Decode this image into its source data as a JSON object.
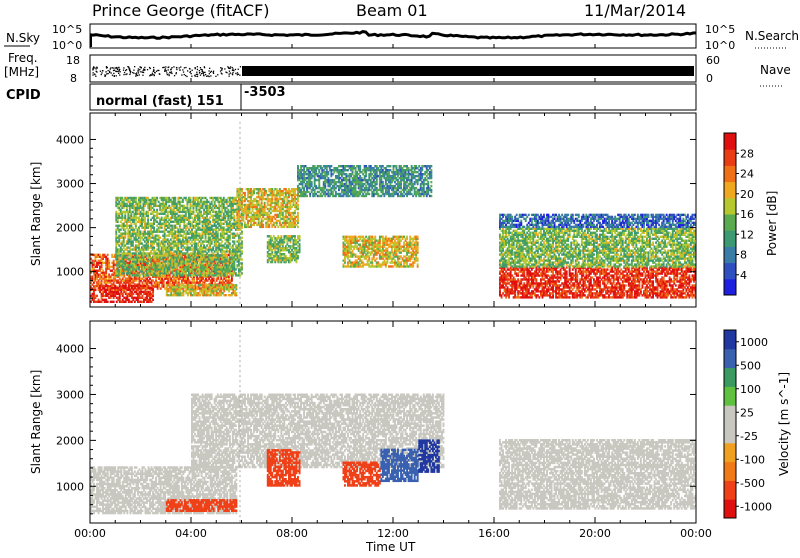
{
  "title": {
    "station": "Prince George (fitACF)",
    "beam": "Beam 01",
    "date": "11/Mar/2014"
  },
  "noise_panel": {
    "left_label": "N.Sky",
    "right_label": "N.Search",
    "left_ticks": [
      "10^5",
      "10^0"
    ],
    "right_ticks": [
      "10^5",
      "10^0"
    ]
  },
  "freq_panel": {
    "left_label_line1": "Freq.",
    "left_label_line2": "[MHz]",
    "right_label": "Nave",
    "left_ticks": [
      "18",
      "8"
    ],
    "right_ticks": [
      "60",
      "0"
    ]
  },
  "cpid_panel": {
    "label": "CPID",
    "segments": [
      "normal (fast) 151",
      "-3503"
    ]
  },
  "colors": {
    "power": [
      "#1f1fe0",
      "#2f4fc0",
      "#3a7ca8",
      "#3c9a72",
      "#5aaa50",
      "#b5c830",
      "#f0a820",
      "#f07018",
      "#e83c14",
      "#e01010"
    ],
    "velocity": [
      "#e01010",
      "#f04018",
      "#f07a18",
      "#f0a020",
      "#c8c8c0",
      "#c8c8c0",
      "#60c040",
      "#3a9a60",
      "#3a60b0",
      "#2038a0"
    ],
    "grey": "#c8c8c0"
  },
  "chart_data": [
    {
      "type": "heatmap",
      "name": "power",
      "title": "",
      "xlabel": "Time UT",
      "ylabel": "Slant Range [km]",
      "colorbar_label": "Power [dB]",
      "colorbar_ticks": [
        "4",
        "8",
        "12",
        "16",
        "20",
        "24",
        "28"
      ],
      "colorbar_range": [
        0,
        30
      ],
      "xlim": [
        0,
        24
      ],
      "ylim": [
        200,
        4600
      ],
      "x_ticks": [
        "00:00",
        "04:00",
        "08:00",
        "12:00",
        "16:00",
        "20:00",
        "00:00"
      ],
      "y_ticks": [
        "1000",
        "2000",
        "3000",
        "4000"
      ],
      "features": [
        {
          "t0": 0.0,
          "t1": 5.6,
          "r0": 600,
          "r1": 1400,
          "level": 24
        },
        {
          "t0": 0.0,
          "t1": 2.5,
          "r0": 300,
          "r1": 700,
          "level": 28
        },
        {
          "t0": 1.0,
          "t1": 6.0,
          "r0": 900,
          "r1": 2700,
          "level": 14
        },
        {
          "t0": 3.0,
          "t1": 5.8,
          "r0": 450,
          "r1": 700,
          "level": 18
        },
        {
          "t0": 5.8,
          "t1": 8.2,
          "r0": 2000,
          "r1": 2900,
          "level": 18
        },
        {
          "t0": 8.2,
          "t1": 13.5,
          "r0": 2700,
          "r1": 3400,
          "level": 10
        },
        {
          "t0": 10.0,
          "t1": 13.0,
          "r0": 1100,
          "r1": 1800,
          "level": 18
        },
        {
          "t0": 7.0,
          "t1": 8.3,
          "r0": 1200,
          "r1": 1800,
          "level": 14
        },
        {
          "t0": 16.2,
          "t1": 24.0,
          "r0": 400,
          "r1": 1100,
          "level": 27
        },
        {
          "t0": 16.2,
          "t1": 24.0,
          "r0": 1100,
          "r1": 2000,
          "level": 14
        },
        {
          "t0": 16.2,
          "t1": 24.0,
          "r0": 2000,
          "r1": 2300,
          "level": 6
        }
      ]
    },
    {
      "type": "heatmap",
      "name": "velocity",
      "title": "",
      "xlabel": "Time UT",
      "ylabel": "Slant Range [km]",
      "colorbar_label": "Velocity [m s^-1]",
      "colorbar_ticks": [
        "1000",
        "500",
        "100",
        "25",
        "-25",
        "-100",
        "-500",
        "-1000"
      ],
      "colorbar_range": [
        -1000,
        1000
      ],
      "xlim": [
        0,
        24
      ],
      "ylim": [
        200,
        4600
      ],
      "x_ticks": [
        "00:00",
        "04:00",
        "08:00",
        "12:00",
        "16:00",
        "20:00",
        "00:00"
      ],
      "y_ticks": [
        "1000",
        "2000",
        "3000",
        "4000"
      ],
      "features": [
        {
          "t0": 0.0,
          "t1": 5.8,
          "r0": 400,
          "r1": 1400,
          "value": 0
        },
        {
          "t0": 4.0,
          "t1": 14.0,
          "r0": 1400,
          "r1": 3000,
          "value": 0
        },
        {
          "t0": 7.0,
          "t1": 8.3,
          "r0": 1000,
          "r1": 1800,
          "value": -300
        },
        {
          "t0": 10.0,
          "t1": 11.5,
          "r0": 1000,
          "r1": 1500,
          "value": -150
        },
        {
          "t0": 11.5,
          "t1": 13.0,
          "r0": 1100,
          "r1": 1800,
          "value": 150
        },
        {
          "t0": 13.0,
          "t1": 13.8,
          "r0": 1300,
          "r1": 2000,
          "value": 700
        },
        {
          "t0": 16.2,
          "t1": 24.0,
          "r0": 500,
          "r1": 2000,
          "value": 0
        },
        {
          "t0": 3.0,
          "t1": 5.8,
          "r0": 450,
          "r1": 700,
          "value": -150
        }
      ]
    }
  ]
}
